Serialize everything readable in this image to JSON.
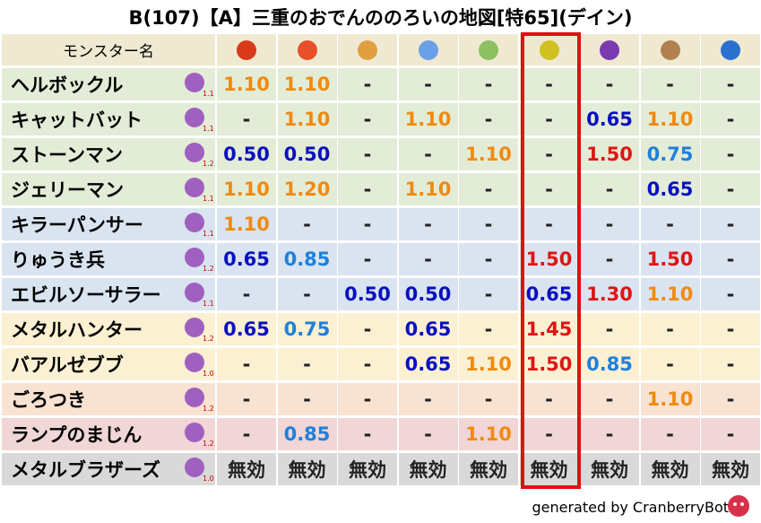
{
  "title": "B(107)【A】三重のおでんののろいの地図[特65](デイン)",
  "table": {
    "header": "モンスター名",
    "rows": [
      {
        "name": "ヘルボックル",
        "level": "1.1",
        "cells": [
          "1.10",
          "1.10",
          "-",
          "-",
          "-",
          "-",
          "-",
          "-",
          "-"
        ]
      },
      {
        "name": "キャットバット",
        "level": "1.1",
        "cells": [
          "-",
          "1.10",
          "-",
          "1.10",
          "-",
          "-",
          "0.65",
          "1.10",
          "-"
        ]
      },
      {
        "name": "ストーンマン",
        "level": "1.2",
        "cells": [
          "0.50",
          "0.50",
          "-",
          "-",
          "1.10",
          "-",
          "1.50",
          "0.75",
          "-"
        ]
      },
      {
        "name": "ジェリーマン",
        "level": "1.1",
        "cells": [
          "1.10",
          "1.20",
          "-",
          "1.10",
          "-",
          "-",
          "-",
          "0.65",
          "-"
        ]
      },
      {
        "name": "キラーパンサー",
        "level": "1.1",
        "cells": [
          "1.10",
          "-",
          "-",
          "-",
          "-",
          "-",
          "-",
          "-",
          "-"
        ]
      },
      {
        "name": "りゅうき兵",
        "level": "1.2",
        "cells": [
          "0.65",
          "0.85",
          "-",
          "-",
          "-",
          "1.50",
          "-",
          "1.50",
          "-"
        ]
      },
      {
        "name": "エビルソーサラー",
        "level": "1.1",
        "cells": [
          "-",
          "-",
          "0.50",
          "0.50",
          "-",
          "0.65",
          "1.30",
          "1.10",
          "-"
        ]
      },
      {
        "name": "メタルハンター",
        "level": "1.2",
        "cells": [
          "0.65",
          "0.75",
          "-",
          "0.65",
          "-",
          "1.45",
          "-",
          "-",
          "-"
        ]
      },
      {
        "name": "バアルゼブブ",
        "level": "1.0",
        "cells": [
          "-",
          "-",
          "-",
          "0.65",
          "1.10",
          "1.50",
          "0.85",
          "-",
          "-"
        ]
      },
      {
        "name": "ごろつき",
        "level": "1.2",
        "cells": [
          "-",
          "-",
          "-",
          "-",
          "-",
          "-",
          "-",
          "1.10",
          "-"
        ]
      },
      {
        "name": "ランプのまじん",
        "level": "1.2",
        "cells": [
          "-",
          "0.85",
          "-",
          "-",
          "1.10",
          "-",
          "-",
          "-",
          "-"
        ]
      },
      {
        "name": "メタルブラザーズ",
        "level": "1.0",
        "cells": [
          "無効",
          "無効",
          "無効",
          "無効",
          "無効",
          "無効",
          "無効",
          "無効",
          "無効"
        ]
      }
    ]
  },
  "footer": "generated by CranberryBot"
}
